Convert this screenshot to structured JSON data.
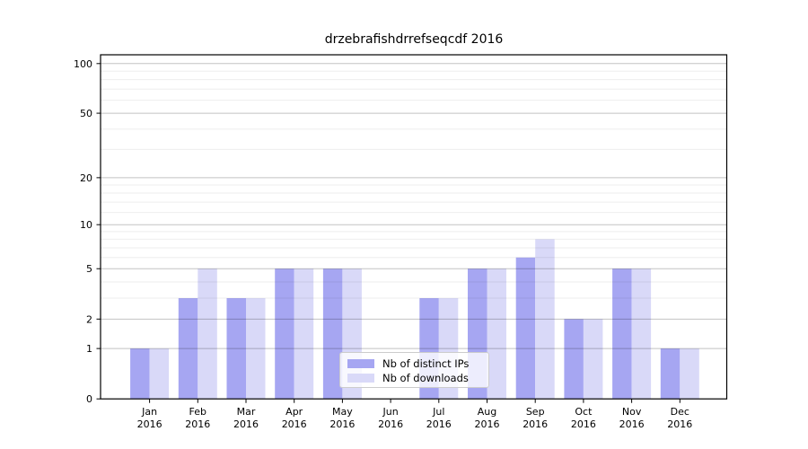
{
  "chart_data": {
    "type": "bar",
    "title": "drzebrafishdrrefseqcdf 2016",
    "categories": [
      {
        "label": "Jan",
        "sublabel": "2016"
      },
      {
        "label": "Feb",
        "sublabel": "2016"
      },
      {
        "label": "Mar",
        "sublabel": "2016"
      },
      {
        "label": "Apr",
        "sublabel": "2016"
      },
      {
        "label": "May",
        "sublabel": "2016"
      },
      {
        "label": "Jun",
        "sublabel": "2016"
      },
      {
        "label": "Jul",
        "sublabel": "2016"
      },
      {
        "label": "Aug",
        "sublabel": "2016"
      },
      {
        "label": "Sep",
        "sublabel": "2016"
      },
      {
        "label": "Oct",
        "sublabel": "2016"
      },
      {
        "label": "Nov",
        "sublabel": "2016"
      },
      {
        "label": "Dec",
        "sublabel": "2016"
      }
    ],
    "series": [
      {
        "name": "Nb of distinct IPs",
        "color": "#a6a6f2",
        "values": [
          1,
          3,
          3,
          5,
          5,
          0,
          3,
          5,
          6,
          2,
          5,
          1
        ]
      },
      {
        "name": "Nb of downloads",
        "color": "#d9d9f8",
        "values": [
          1,
          5,
          3,
          5,
          5,
          0,
          3,
          5,
          8,
          2,
          5,
          1
        ]
      }
    ],
    "xlabel": "",
    "ylabel": "",
    "y_scale": "log1p",
    "ylim": [
      0,
      113
    ],
    "y_major_ticks": [
      0,
      1,
      2,
      5,
      10,
      20,
      50,
      100
    ],
    "y_minor_ticks": [
      3,
      4,
      6,
      7,
      8,
      9,
      12,
      14,
      16,
      18,
      30,
      40,
      60,
      70,
      80,
      90
    ],
    "grid": true,
    "legend_position": "bottom-center-inside"
  }
}
